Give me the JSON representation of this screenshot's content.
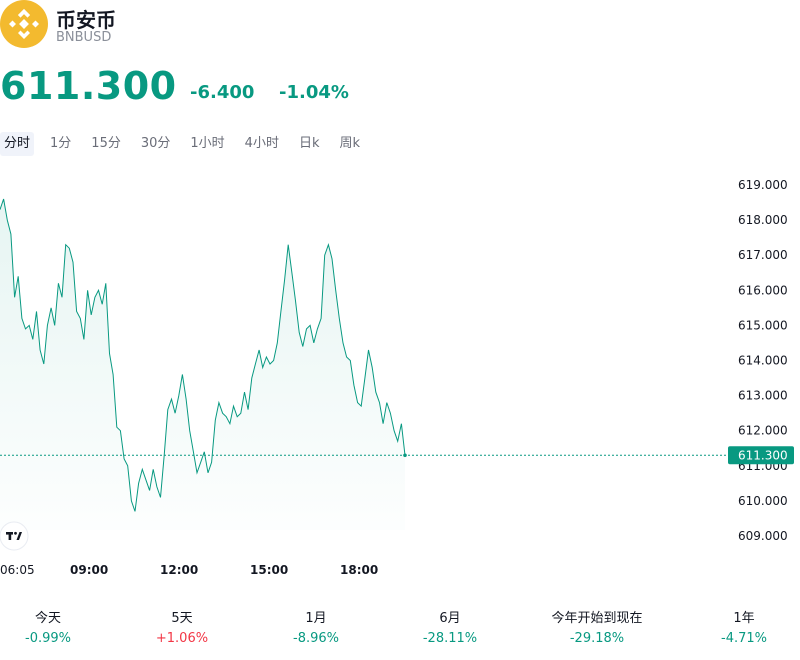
{
  "header": {
    "name": "币安币",
    "ticker": "BNBUSD",
    "logo_icon": "bnb-logo-icon",
    "logo_color": "#F3BA2F"
  },
  "quote": {
    "price": "611.300",
    "change": "-6.400",
    "change_pct": "-1.04%",
    "color": "#089981"
  },
  "tabs": [
    {
      "label": "分时",
      "active": true
    },
    {
      "label": "1分",
      "active": false
    },
    {
      "label": "15分",
      "active": false
    },
    {
      "label": "30分",
      "active": false
    },
    {
      "label": "1小时",
      "active": false
    },
    {
      "label": "4小时",
      "active": false
    },
    {
      "label": "日k",
      "active": false
    },
    {
      "label": "周k",
      "active": false
    }
  ],
  "chart_data": {
    "type": "area",
    "y_ticks": [
      "619.000",
      "618.000",
      "617.000",
      "616.000",
      "615.000",
      "614.000",
      "613.000",
      "612.000",
      "611.000",
      "610.000",
      "609.000"
    ],
    "ylim": [
      609.0,
      619.0
    ],
    "x_labels": [
      {
        "label": "06:05",
        "bold": false
      },
      {
        "label": "09:00",
        "bold": true
      },
      {
        "label": "12:00",
        "bold": true
      },
      {
        "label": "15:00",
        "bold": true
      },
      {
        "label": "18:00",
        "bold": true
      }
    ],
    "last_price_label": "611.300",
    "last_value": 611.3,
    "line_color": "#089981",
    "points": [
      618.3,
      618.6,
      618.0,
      617.6,
      615.8,
      616.4,
      615.2,
      614.9,
      615.0,
      614.6,
      615.4,
      614.3,
      613.9,
      615.0,
      615.5,
      615.0,
      616.2,
      615.8,
      617.3,
      617.2,
      616.8,
      615.4,
      615.2,
      614.6,
      616.0,
      615.3,
      615.8,
      616.0,
      615.6,
      616.2,
      614.2,
      613.6,
      612.1,
      612.0,
      611.2,
      611.0,
      610.0,
      609.7,
      610.5,
      610.9,
      610.6,
      610.3,
      610.9,
      610.4,
      610.1,
      611.3,
      612.6,
      612.9,
      612.5,
      613.0,
      613.6,
      612.9,
      612.0,
      611.4,
      610.8,
      611.1,
      611.4,
      610.8,
      611.1,
      612.3,
      612.8,
      612.5,
      612.4,
      612.2,
      612.7,
      612.4,
      612.5,
      613.1,
      612.6,
      613.5,
      613.9,
      614.3,
      613.8,
      614.1,
      613.9,
      614.0,
      614.5,
      615.4,
      616.3,
      617.3,
      616.5,
      615.7,
      614.8,
      614.4,
      614.9,
      615.0,
      614.5,
      614.9,
      615.2,
      617.0,
      617.3,
      616.9,
      616.0,
      615.2,
      614.5,
      614.1,
      614.0,
      613.3,
      612.8,
      612.7,
      613.5,
      614.3,
      613.8,
      613.1,
      612.8,
      612.2,
      612.8,
      612.5,
      612.0,
      611.7,
      612.2,
      611.3
    ]
  },
  "periods": [
    {
      "label": "今天",
      "value": "-0.99%",
      "sign": "neg"
    },
    {
      "label": "5天",
      "value": "+1.06%",
      "sign": "pos"
    },
    {
      "label": "1月",
      "value": "-8.96%",
      "sign": "neg"
    },
    {
      "label": "6月",
      "value": "-28.11%",
      "sign": "neg"
    },
    {
      "label": "今年开始到现在",
      "value": "-29.18%",
      "sign": "neg"
    },
    {
      "label": "1年",
      "value": "-4.71%",
      "sign": "neg"
    }
  ]
}
